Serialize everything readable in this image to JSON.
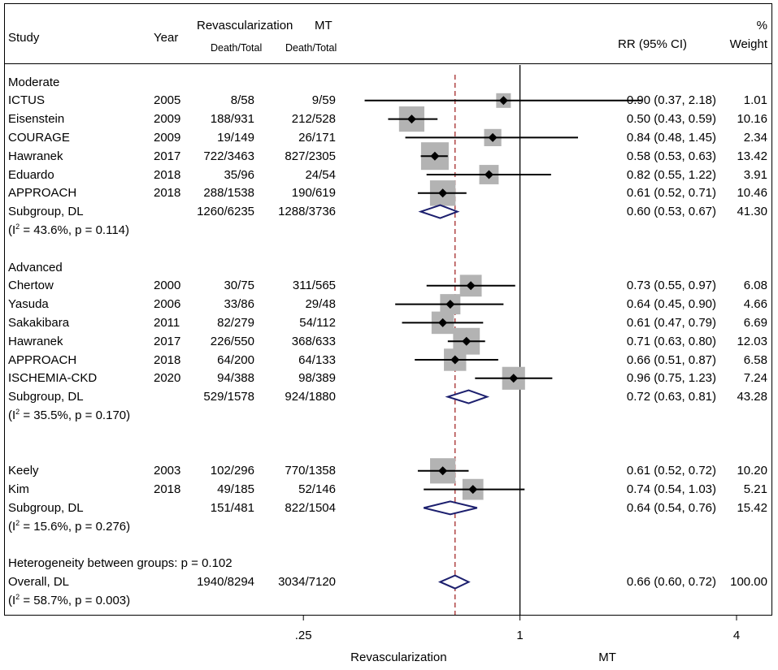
{
  "header": {
    "study": "Study",
    "year": "Year",
    "revasc": "Revascularization",
    "mt": "MT",
    "revasc_sub": "Death/Total",
    "mt_sub": "Death/Total",
    "rr": "RR (95% CI)",
    "pct": "%",
    "weight": "Weight"
  },
  "rows": [
    {
      "type": "heading",
      "label": "Moderate"
    },
    {
      "type": "study",
      "study": "ICTUS",
      "year": "2005",
      "revasc": "8/58",
      "mt": "9/59",
      "rr": 0.9,
      "lo": 0.37,
      "hi": 2.18,
      "ci": "0.90 (0.37, 2.18)",
      "weight": "1.01"
    },
    {
      "type": "study",
      "study": "Eisenstein",
      "year": "2009",
      "revasc": "188/931",
      "mt": "212/528",
      "rr": 0.5,
      "lo": 0.43,
      "hi": 0.59,
      "ci": "0.50 (0.43, 0.59)",
      "weight": "10.16"
    },
    {
      "type": "study",
      "study": "COURAGE",
      "year": "2009",
      "revasc": "19/149",
      "mt": "26/171",
      "rr": 0.84,
      "lo": 0.48,
      "hi": 1.45,
      "ci": "0.84 (0.48, 1.45)",
      "weight": "2.34"
    },
    {
      "type": "study",
      "study": "Hawranek",
      "year": "2017",
      "revasc": "722/3463",
      "mt": "827/2305",
      "rr": 0.58,
      "lo": 0.53,
      "hi": 0.63,
      "ci": "0.58 (0.53, 0.63)",
      "weight": "13.42"
    },
    {
      "type": "study",
      "study": "Eduardo",
      "year": "2018",
      "revasc": "35/96",
      "mt": "24/54",
      "rr": 0.82,
      "lo": 0.55,
      "hi": 1.22,
      "ci": "0.82 (0.55, 1.22)",
      "weight": "3.91"
    },
    {
      "type": "study",
      "study": "APPROACH",
      "year": "2018",
      "revasc": "288/1538",
      "mt": "190/619",
      "rr": 0.61,
      "lo": 0.52,
      "hi": 0.71,
      "ci": "0.61 (0.52, 0.71)",
      "weight": "10.46"
    },
    {
      "type": "subgroup",
      "study": "Subgroup, DL",
      "year": "",
      "revasc": "1260/6235",
      "mt": "1288/3736",
      "rr": 0.6,
      "lo": 0.53,
      "hi": 0.67,
      "ci": "0.60 (0.53, 0.67)",
      "weight": "41.30"
    },
    {
      "type": "het",
      "pre": "(I",
      "sup": "2",
      "post": " = 43.6%, p = 0.114)"
    },
    {
      "type": "blank"
    },
    {
      "type": "heading",
      "label": "Advanced"
    },
    {
      "type": "study",
      "study": "Chertow",
      "year": "2000",
      "revasc": "30/75",
      "mt": "311/565",
      "rr": 0.73,
      "lo": 0.55,
      "hi": 0.97,
      "ci": "0.73 (0.55, 0.97)",
      "weight": "6.08"
    },
    {
      "type": "study",
      "study": "Yasuda",
      "year": "2006",
      "revasc": "33/86",
      "mt": "29/48",
      "rr": 0.64,
      "lo": 0.45,
      "hi": 0.9,
      "ci": "0.64 (0.45, 0.90)",
      "weight": "4.66"
    },
    {
      "type": "study",
      "study": "Sakakibara",
      "year": "2011",
      "revasc": "82/279",
      "mt": "54/112",
      "rr": 0.61,
      "lo": 0.47,
      "hi": 0.79,
      "ci": "0.61 (0.47, 0.79)",
      "weight": "6.69"
    },
    {
      "type": "study",
      "study": "Hawranek",
      "year": "2017",
      "revasc": "226/550",
      "mt": "368/633",
      "rr": 0.71,
      "lo": 0.63,
      "hi": 0.8,
      "ci": "0.71 (0.63, 0.80)",
      "weight": "12.03"
    },
    {
      "type": "study",
      "study": "APPROACH",
      "year": "2018",
      "revasc": "64/200",
      "mt": "64/133",
      "rr": 0.66,
      "lo": 0.51,
      "hi": 0.87,
      "ci": "0.66 (0.51, 0.87)",
      "weight": "6.58"
    },
    {
      "type": "study",
      "study": "ISCHEMIA-CKD",
      "year": "2020",
      "revasc": "94/388",
      "mt": "98/389",
      "rr": 0.96,
      "lo": 0.75,
      "hi": 1.23,
      "ci": "0.96 (0.75, 1.23)",
      "weight": "7.24"
    },
    {
      "type": "subgroup",
      "study": "Subgroup, DL",
      "year": "",
      "revasc": "529/1578",
      "mt": "924/1880",
      "rr": 0.72,
      "lo": 0.63,
      "hi": 0.81,
      "ci": "0.72 (0.63, 0.81)",
      "weight": "43.28"
    },
    {
      "type": "het",
      "pre": "(I",
      "sup": "2",
      "post": " = 35.5%, p = 0.170)"
    },
    {
      "type": "blank"
    },
    {
      "type": "blank"
    },
    {
      "type": "study",
      "study": "Keely",
      "year": "2003",
      "revasc": "102/296",
      "mt": "770/1358",
      "rr": 0.61,
      "lo": 0.52,
      "hi": 0.72,
      "ci": "0.61 (0.52, 0.72)",
      "weight": "10.20"
    },
    {
      "type": "study",
      "study": "Kim",
      "year": "2018",
      "revasc": "49/185",
      "mt": "52/146",
      "rr": 0.74,
      "lo": 0.54,
      "hi": 1.03,
      "ci": "0.74 (0.54, 1.03)",
      "weight": "5.21"
    },
    {
      "type": "subgroup",
      "study": "Subgroup, DL",
      "year": "",
      "revasc": "151/481",
      "mt": "822/1504",
      "rr": 0.64,
      "lo": 0.54,
      "hi": 0.76,
      "ci": "0.64 (0.54, 0.76)",
      "weight": "15.42"
    },
    {
      "type": "het",
      "pre": "(I",
      "sup": "2",
      "post": " = 15.6%, p = 0.276)"
    },
    {
      "type": "blank"
    },
    {
      "type": "heading",
      "label": "Heterogeneity between groups: p = 0.102"
    },
    {
      "type": "overall",
      "study": "Overall, DL",
      "year": "",
      "revasc": "1940/8294",
      "mt": "3034/7120",
      "rr": 0.66,
      "lo": 0.6,
      "hi": 0.72,
      "ci": "0.66 (0.60, 0.72)",
      "weight": "100.00"
    },
    {
      "type": "het",
      "pre": "(I",
      "sup": "2",
      "post": " = 58.7%, p = 0.003)"
    }
  ],
  "chart_data": {
    "type": "forest",
    "scale": "log",
    "xlim": [
      0.125,
      4
    ],
    "ticks": [
      {
        "value": 0.25,
        "label": ".25"
      },
      {
        "value": 1,
        "label": "1"
      },
      {
        "value": 4,
        "label": "4"
      }
    ],
    "null_line": 1,
    "overall_line": 0.66,
    "xlabel_left": "Revascularization",
    "xlabel_right": "MT",
    "colors": {
      "diamond": "#1c1f6e",
      "overall_line": "#a52a2a",
      "box": "#b3b3b3",
      "point": "#000000"
    }
  }
}
